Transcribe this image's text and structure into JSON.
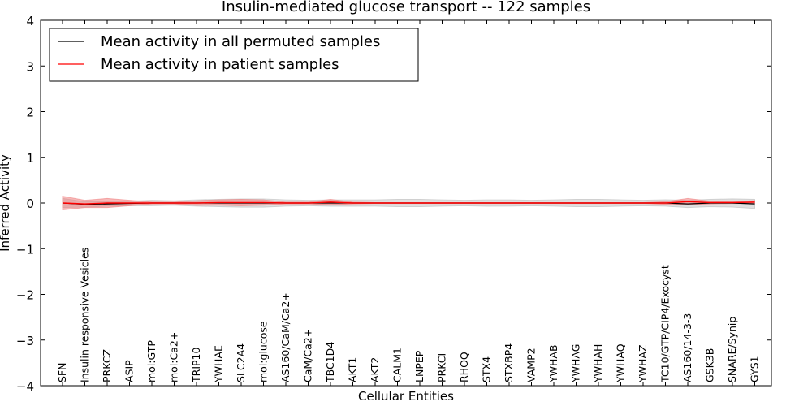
{
  "chart_data": {
    "type": "line",
    "title": "Insulin-mediated glucose transport -- 122 samples",
    "xlabel": "Cellular Entities",
    "ylabel": "Inferred Activity",
    "ylim": [
      -4,
      4
    ],
    "yticks": [
      -4,
      -3,
      -2,
      -1,
      0,
      1,
      2,
      3,
      4
    ],
    "ytick_labels": [
      "−4",
      "−3",
      "−2",
      "−1",
      "0",
      "1",
      "2",
      "3",
      "4"
    ],
    "categories": [
      "SFN",
      "Insulin responsive Vesicles",
      "PRKCZ",
      "ASIP",
      "mol:GTP",
      "mol:Ca2+",
      "TRIP10",
      "YWHAE",
      "SLC2A4",
      "mol:glucose",
      "AS160/CaM/Ca2+",
      "CaM/Ca2+",
      "TBC1D4",
      "AKT1",
      "AKT2",
      "CALM1",
      "LNPEP",
      "PRKCI",
      "RHOQ",
      "STX4",
      "STXBP4",
      "VAMP2",
      "YWHAB",
      "YWHAG",
      "YWHAH",
      "YWHAQ",
      "YWHAZ",
      "TC10/GTP/CIP4/Exocyst",
      "AS160/14-3-3",
      "GSK3B",
      "SNARE/Synip",
      "GYS1"
    ],
    "legend_position": "upper-left",
    "series": [
      {
        "name": "Mean activity in all permuted samples",
        "color": "#000000",
        "band_color": "#bbbbbb",
        "values": [
          0.0,
          -0.03,
          -0.02,
          -0.01,
          0.0,
          0.0,
          0.0,
          0.0,
          0.0,
          0.0,
          0.0,
          0.0,
          0.0,
          0.0,
          0.0,
          0.0,
          0.0,
          0.0,
          0.0,
          0.0,
          0.0,
          0.0,
          0.0,
          0.0,
          0.0,
          0.0,
          0.0,
          0.0,
          -0.02,
          0.0,
          0.0,
          -0.02
        ],
        "spread": [
          0.1,
          0.06,
          0.05,
          0.05,
          0.06,
          0.05,
          0.07,
          0.08,
          0.09,
          0.09,
          0.07,
          0.06,
          0.07,
          0.07,
          0.07,
          0.08,
          0.08,
          0.07,
          0.06,
          0.07,
          0.07,
          0.06,
          0.07,
          0.08,
          0.08,
          0.07,
          0.06,
          0.07,
          0.08,
          0.08,
          0.09,
          0.1
        ]
      },
      {
        "name": "Mean activity in patient samples",
        "color": "#ff0000",
        "band_color": "#f08080",
        "values": [
          0.0,
          -0.02,
          0.0,
          0.0,
          0.0,
          0.0,
          0.0,
          0.01,
          0.01,
          0.01,
          0.0,
          0.0,
          0.02,
          0.0,
          0.0,
          0.0,
          0.0,
          0.0,
          0.0,
          0.0,
          0.0,
          0.0,
          0.0,
          0.0,
          0.0,
          0.0,
          0.0,
          0.0,
          0.03,
          0.01,
          0.01,
          0.02
        ],
        "spread": [
          0.15,
          0.08,
          0.1,
          0.06,
          0.02,
          0.02,
          0.05,
          0.06,
          0.07,
          0.06,
          0.02,
          0.02,
          0.06,
          0.02,
          0.01,
          0.01,
          0.01,
          0.01,
          0.01,
          0.01,
          0.01,
          0.01,
          0.01,
          0.01,
          0.01,
          0.01,
          0.01,
          0.03,
          0.07,
          0.03,
          0.02,
          0.03
        ]
      }
    ]
  }
}
